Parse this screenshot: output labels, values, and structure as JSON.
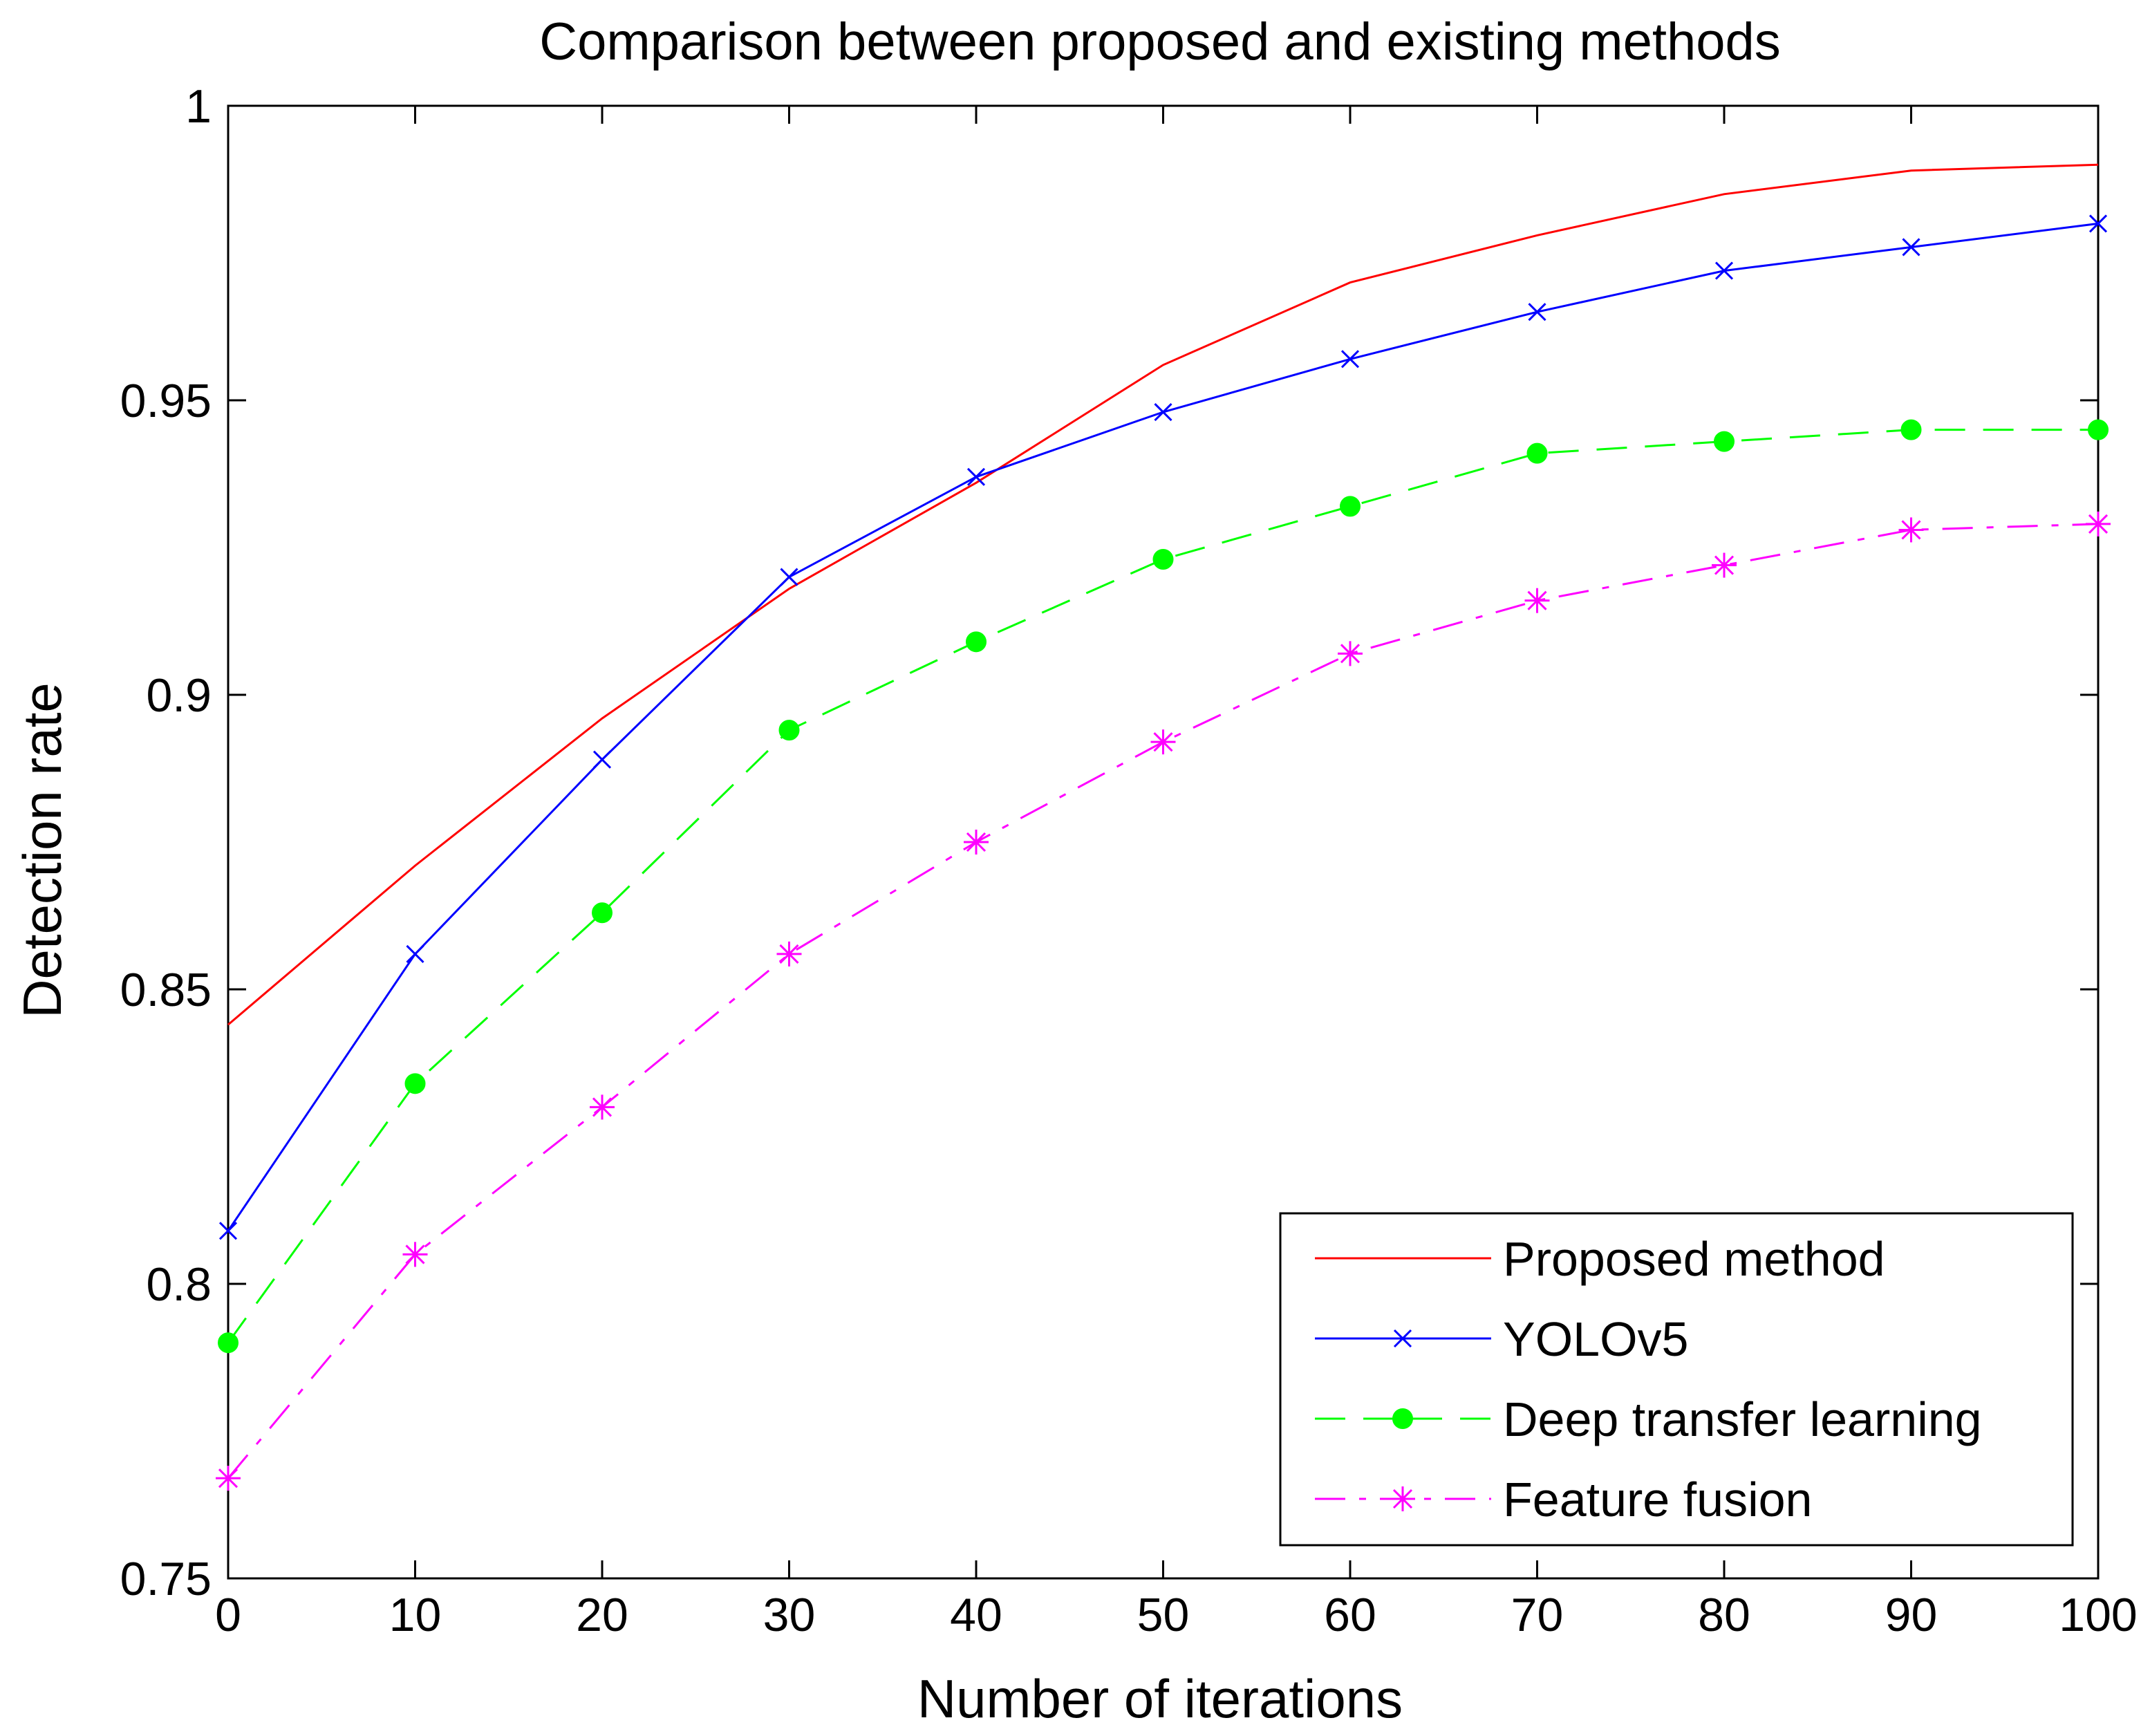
{
  "chart_data": {
    "type": "line",
    "title": "Comparison between proposed and existing methods",
    "xlabel": "Number of iterations",
    "ylabel": "Detection rate",
    "xlim": [
      0,
      100
    ],
    "ylim": [
      0.75,
      1
    ],
    "xticks": [
      0,
      10,
      20,
      30,
      40,
      50,
      60,
      70,
      80,
      90,
      100
    ],
    "xtick_labels": [
      "0",
      "10",
      "20",
      "30",
      "40",
      "50",
      "60",
      "70",
      "80",
      "90",
      "100"
    ],
    "yticks": [
      0.75,
      0.8,
      0.85,
      0.9,
      0.95,
      1
    ],
    "ytick_labels": [
      "0.75",
      "0.8",
      "0.85",
      "0.9",
      "0.95",
      "1"
    ],
    "grid": false,
    "legend_position": "bottom-right",
    "x": [
      0,
      10,
      20,
      30,
      40,
      50,
      60,
      70,
      80,
      90,
      100
    ],
    "series": [
      {
        "name": "Proposed method",
        "color": "#ff0000",
        "marker": "none",
        "dash": "solid",
        "values": [
          0.844,
          0.871,
          0.896,
          0.918,
          0.936,
          0.956,
          0.97,
          0.978,
          0.985,
          0.989,
          0.99
        ]
      },
      {
        "name": "YOLOv5",
        "color": "#0000ff",
        "marker": "x",
        "dash": "solid",
        "values": [
          0.809,
          0.856,
          0.889,
          0.92,
          0.937,
          0.948,
          0.957,
          0.965,
          0.972,
          0.976,
          0.98
        ]
      },
      {
        "name": "Deep transfer learning",
        "color": "#00ff00",
        "marker": "dot",
        "dash": "dashed",
        "values": [
          0.79,
          0.834,
          0.863,
          0.894,
          0.909,
          0.923,
          0.932,
          0.941,
          0.943,
          0.945,
          0.945
        ]
      },
      {
        "name": "Feature fusion",
        "color": "#ff00ff",
        "marker": "star",
        "dash": "dashdot",
        "values": [
          0.767,
          0.805,
          0.83,
          0.856,
          0.875,
          0.892,
          0.907,
          0.916,
          0.922,
          0.928,
          0.929
        ]
      }
    ]
  }
}
